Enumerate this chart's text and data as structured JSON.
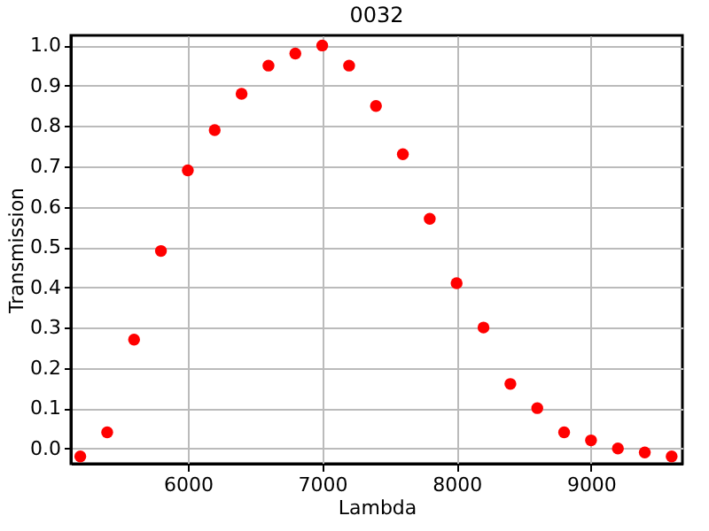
{
  "chart_data": {
    "type": "scatter",
    "title": "0032",
    "xlabel": "Lambda",
    "ylabel": "Transmission",
    "x": [
      5200,
      5400,
      5600,
      5800,
      6000,
      6200,
      6400,
      6600,
      6800,
      7000,
      7200,
      7400,
      7600,
      7800,
      8000,
      8200,
      8400,
      8600,
      8800,
      9000,
      9200,
      9400,
      9600
    ],
    "series": [
      {
        "color": "#ff0000",
        "values": [
          -0.02,
          0.04,
          0.27,
          0.49,
          0.69,
          0.79,
          0.88,
          0.95,
          0.98,
          1.0,
          0.95,
          0.85,
          0.73,
          0.57,
          0.41,
          0.3,
          0.16,
          0.1,
          0.04,
          0.02,
          0.0,
          -0.01,
          -0.02
        ]
      }
    ],
    "xlim": [
      5130,
      9680
    ],
    "ylim": [
      -0.038,
      1.025
    ],
    "xticks": [
      6000,
      7000,
      8000,
      9000
    ],
    "yticks": [
      {
        "value": 0,
        "label": "0.0"
      },
      {
        "value": 0.1,
        "label": "0.1"
      },
      {
        "value": 0.2,
        "label": "0.2"
      },
      {
        "value": 0.3,
        "label": "0.3"
      },
      {
        "value": 0.4,
        "label": "0.4"
      },
      {
        "value": 0.5,
        "label": "0.5"
      },
      {
        "value": 0.6,
        "label": "0.6"
      },
      {
        "value": 0.7,
        "label": "0.7"
      },
      {
        "value": 0.8,
        "label": "0.8"
      },
      {
        "value": 0.9,
        "label": "0.9"
      },
      {
        "value": 1,
        "label": "1.0"
      }
    ],
    "grid": true,
    "marker": "circle"
  }
}
